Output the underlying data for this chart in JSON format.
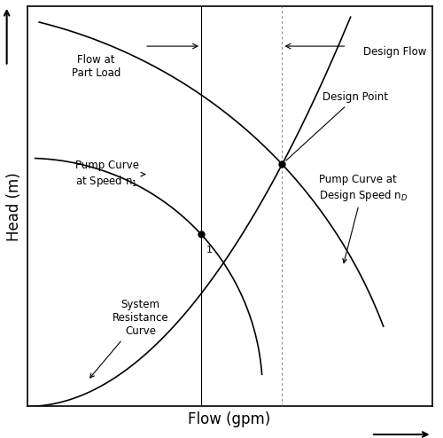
{
  "title": "",
  "xlabel": "Flow (gpm)",
  "ylabel": "Head (m)",
  "background_color": "#ffffff",
  "text_color": "#000000",
  "line_color": "#000000",
  "xlim": [
    0,
    10
  ],
  "ylim": [
    0,
    10
  ],
  "part_load_x": 4.3,
  "design_x": 6.3,
  "part_load_intersection": [
    4.3,
    4.3
  ],
  "design_intersection": [
    6.3,
    6.05
  ],
  "label_font_size": 8.5,
  "axis_label_font_size": 12
}
